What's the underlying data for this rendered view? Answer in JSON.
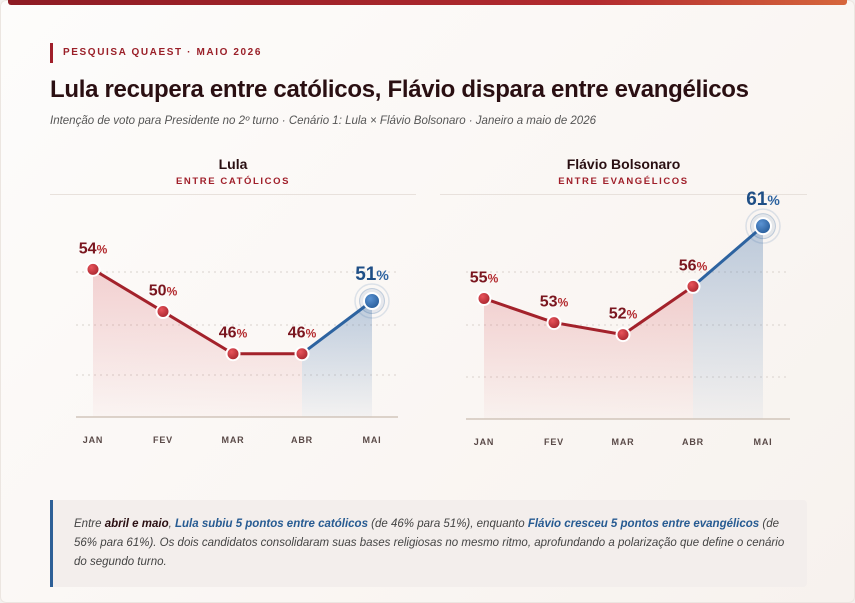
{
  "header": {
    "kicker": "PESQUISA QUAEST · MAIO 2026",
    "title": "Lula recupera entre católicos, Flávio dispara entre evangélicos",
    "subtitle": "Intenção de voto para Presidente no 2º turno · Cenário 1: Lula × Flávio Bolsonaro · Janeiro a maio de 2026"
  },
  "colors": {
    "red": "#a3222b",
    "blue": "#2d63a0",
    "text_dark": "#2a0f12"
  },
  "chart_data": [
    {
      "type": "line",
      "title": "Lula",
      "subtitle": "ENTRE CATÓLICOS",
      "categories": [
        "JAN",
        "FEV",
        "MAR",
        "ABR",
        "MAI"
      ],
      "values": [
        54,
        50,
        46,
        46,
        51
      ],
      "value_suffix": "%",
      "highlight_last": true,
      "ylim": [
        40,
        62
      ],
      "grid": true
    },
    {
      "type": "line",
      "title": "Flávio Bolsonaro",
      "subtitle": "ENTRE EVANGÉLICOS",
      "categories": [
        "JAN",
        "FEV",
        "MAR",
        "ABR",
        "MAI"
      ],
      "values": [
        55,
        53,
        52,
        56,
        61
      ],
      "value_suffix": "%",
      "highlight_last": true,
      "ylim": [
        45,
        64
      ],
      "grid": true
    }
  ],
  "note": {
    "t1": "Entre ",
    "t2": "abril e maio",
    "t3": ", ",
    "t4": "Lula subiu 5 pontos entre católicos",
    "t5": " (de 46% para 51%), enquanto ",
    "t6": "Flávio cresceu 5 pontos entre evangélicos",
    "t7": " (de 56% para 61%). Os dois candidatos consolidaram suas bases religiosas no mesmo ritmo, aprofundando a polarização que define o cenário do segundo turno."
  }
}
